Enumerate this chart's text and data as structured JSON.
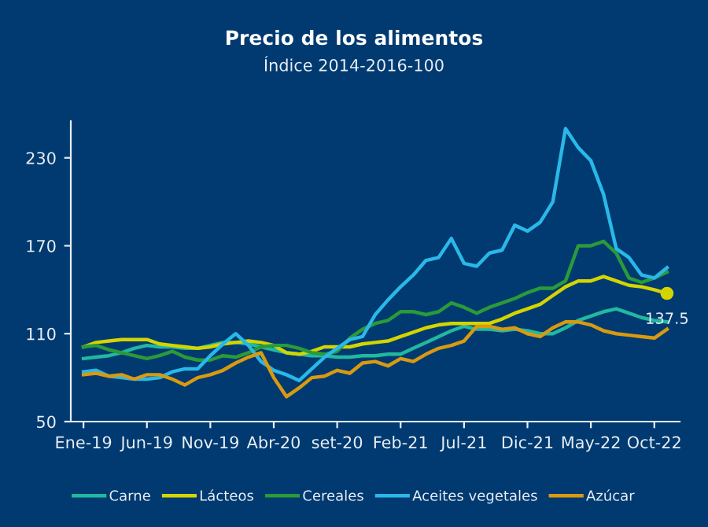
{
  "chart_data": {
    "type": "line",
    "title": "Precio de los alimentos",
    "subtitle": "Índice 2014-2016-100",
    "categories": [
      "Ene-19",
      null,
      null,
      null,
      null,
      "Jun-19",
      null,
      null,
      null,
      null,
      "Nov-19",
      null,
      null,
      null,
      null,
      "Abr-20",
      null,
      null,
      null,
      null,
      "set-20",
      null,
      null,
      null,
      null,
      "Feb-21",
      null,
      null,
      null,
      null,
      "Jul-21",
      null,
      null,
      null,
      null,
      "Dic-21",
      null,
      null,
      null,
      null,
      "May-22",
      null,
      null,
      null,
      null,
      "Oct-22",
      null
    ],
    "series": [
      {
        "name": "Carne",
        "color": "#22b8a0",
        "values": [
          93,
          94,
          95,
          97,
          100,
          102,
          101,
          101,
          100,
          100,
          102,
          104,
          104,
          103,
          101,
          99,
          97,
          96,
          95,
          95,
          94,
          94,
          95,
          95,
          96,
          96,
          100,
          104,
          108,
          112,
          115,
          113,
          113,
          112,
          113,
          112,
          110,
          110,
          114,
          119,
          122,
          125,
          127,
          124,
          121,
          119,
          118
        ]
      },
      {
        "name": "Lácteos",
        "color": "#d4d400",
        "values": [
          101,
          104,
          105,
          106,
          106,
          106,
          103,
          102,
          101,
          100,
          101,
          103,
          104,
          105,
          104,
          102,
          97,
          96,
          98,
          101,
          101,
          101,
          103,
          104,
          105,
          108,
          111,
          114,
          116,
          117,
          117,
          117,
          117,
          120,
          124,
          127,
          130,
          136,
          142,
          146,
          146,
          149,
          146,
          143,
          142,
          140,
          137.5
        ],
        "value_labels": [
          null,
          null,
          null,
          null,
          null,
          null,
          null,
          null,
          null,
          null,
          null,
          null,
          null,
          null,
          null,
          null,
          null,
          null,
          null,
          null,
          null,
          null,
          null,
          null,
          null,
          null,
          null,
          null,
          null,
          null,
          null,
          null,
          null,
          null,
          null,
          null,
          null,
          null,
          null,
          null,
          null,
          null,
          null,
          null,
          null,
          null,
          "137.5"
        ]
      },
      {
        "name": "Cereales",
        "color": "#2a9a3a",
        "values": [
          101,
          102,
          99,
          97,
          95,
          93,
          95,
          98,
          94,
          92,
          92,
          95,
          94,
          97,
          101,
          102,
          102,
          100,
          97,
          96,
          98,
          107,
          113,
          117,
          119,
          125,
          125,
          123,
          125,
          131,
          128,
          124,
          128,
          131,
          134,
          138,
          141,
          141,
          146,
          170,
          170,
          173,
          165,
          148,
          145,
          148,
          152
        ]
      },
      {
        "name": "Aceites vegetales",
        "color": "#29b8e8",
        "values": [
          84,
          85,
          81,
          80,
          79,
          79,
          80,
          84,
          86,
          86,
          95,
          103,
          110,
          102,
          91,
          85,
          82,
          78,
          86,
          94,
          100,
          106,
          108,
          123,
          133,
          142,
          150,
          160,
          162,
          175,
          158,
          156,
          165,
          167,
          184,
          180,
          186,
          200,
          250,
          237,
          228,
          205,
          168,
          162,
          150,
          148,
          155
        ]
      },
      {
        "name": "Azúcar",
        "color": "#d89a10",
        "values": [
          82,
          83,
          81,
          82,
          79,
          82,
          82,
          79,
          75,
          80,
          82,
          85,
          90,
          94,
          97,
          80,
          67,
          73,
          80,
          81,
          85,
          83,
          90,
          91,
          88,
          93,
          91,
          96,
          100,
          102,
          105,
          115,
          115,
          113,
          114,
          110,
          108,
          114,
          118,
          118,
          116,
          112,
          110,
          109,
          108,
          107,
          113
        ]
      }
    ],
    "ylim": [
      50,
      255
    ],
    "yticks": [
      50,
      110,
      170,
      230
    ],
    "grid": false,
    "legend": "bottom",
    "marker": "none",
    "line_style": "solid"
  }
}
